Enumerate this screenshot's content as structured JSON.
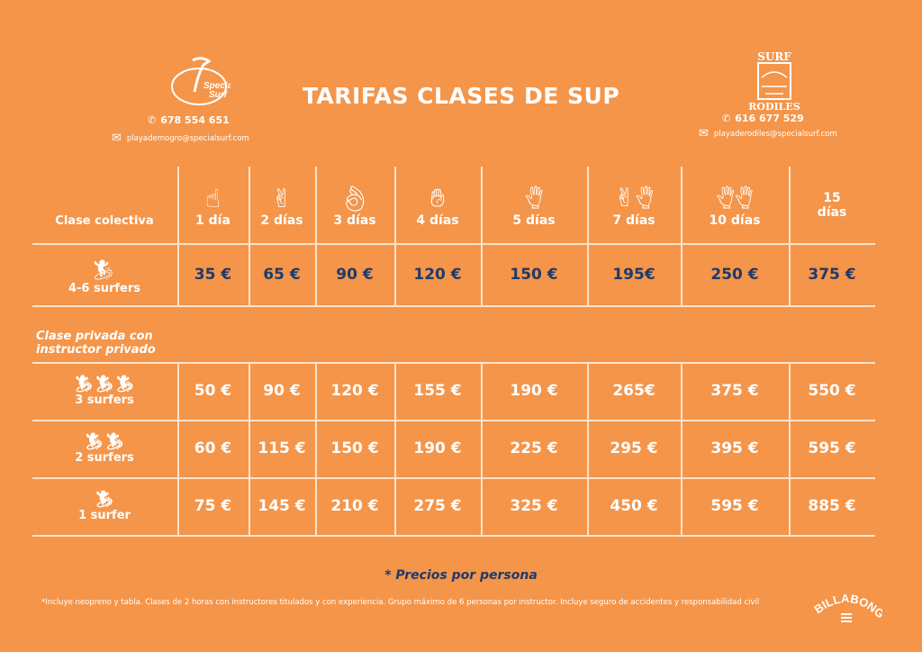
{
  "title": "TARIFAS CLASES DE SUP",
  "left_contact": {
    "logo_text": "Special Surf Shop",
    "phone": "678 554 651",
    "email": "playademogro@specialsurf.com"
  },
  "right_contact": {
    "logo_text": "SURF SPECIAL SCHOOL RODILES",
    "phone": "616 677 529",
    "email": "playaderodiles@specialsurf.com"
  },
  "columns": [
    "1 día",
    "2 días",
    "3 días",
    "4 días",
    "5 días",
    "7 días",
    "10 días",
    "15 días"
  ],
  "collective": {
    "heading": "Clase colectiva",
    "group_label": "4-6 surfers",
    "prices": [
      "35 €",
      "65 €",
      "90 €",
      "120 €",
      "150 €",
      "195€",
      "250 €",
      "375 €"
    ]
  },
  "private": {
    "heading": "Clase privada con instructor privado",
    "rows": [
      {
        "label": "3 surfers",
        "prices": [
          "50 €",
          "90 €",
          "120 €",
          "155 €",
          "190 €",
          "265€",
          "375 €",
          "550 €"
        ]
      },
      {
        "label": "2 surfers",
        "prices": [
          "60 €",
          "115 €",
          "150 €",
          "190 €",
          "225 €",
          "295 €",
          "395 €",
          "595 €"
        ]
      },
      {
        "label": "1 surfer",
        "prices": [
          "75 €",
          "145 €",
          "210 €",
          "275 €",
          "325 €",
          "450 €",
          "595 €",
          "885 €"
        ]
      }
    ]
  },
  "note": "* Precios por persona",
  "footer": "*Incluye neopreno y tabla. Clases de 2 horas con instructores titulados y con experiencia. Grupo máximo de 6 personas por instructor. Incluye seguro de accidentes y responsabilidad civil",
  "brand_logo": "BILLABONG",
  "colors": {
    "background": "#F4954A",
    "price_collective": "#1E3A6B",
    "text": "#FFFFFF"
  }
}
